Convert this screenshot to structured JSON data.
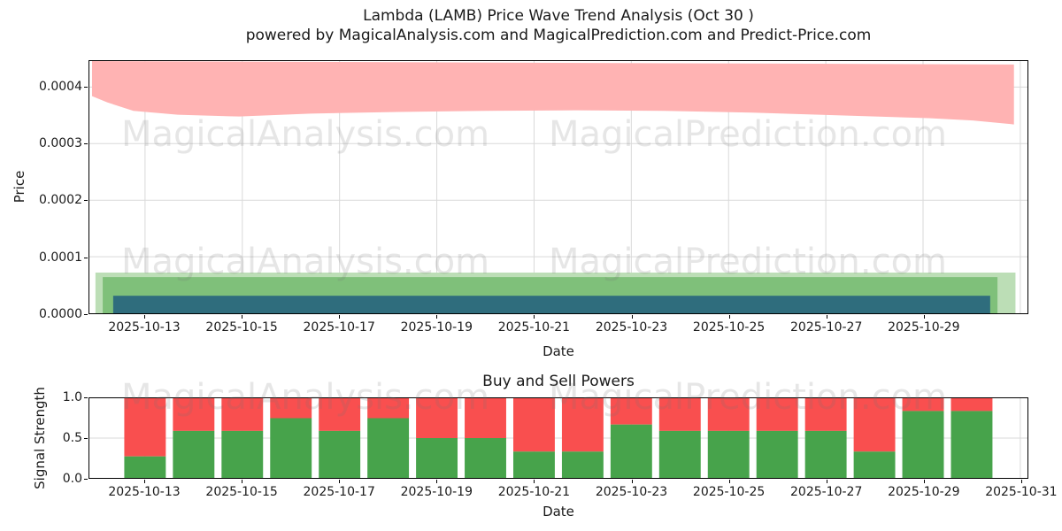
{
  "figure": {
    "title_line1": "Lambda (LAMB) Price Wave Trend Analysis (Oct 30 )",
    "title_line2": "powered by MagicalAnalysis.com and MagicalPrediction.com and Predict-Price.com"
  },
  "watermarks": {
    "text1": "MagicalAnalysis.com",
    "text2": "MagicalPrediction.com"
  },
  "colors": {
    "resistance_band": "#ffb3b3",
    "support_band_outer": "#bcdeb6",
    "support_band_inner": "#7fc07a",
    "trend_band": "#2f6d7d",
    "buy_bar": "#47a34b",
    "sell_bar": "#f94f4f",
    "grid": "#d9d9d9",
    "axis": "#000000",
    "text": "#1a1a1a"
  },
  "chart_data": [
    {
      "type": "area",
      "title": "Lambda (LAMB) Price Wave Trend Analysis (Oct 30 )",
      "xlabel": "Date",
      "ylabel": "Price",
      "ylim": [
        0.0,
        0.000446
      ],
      "grid": true,
      "day0": "2025-10-12",
      "xticks": [
        "2025-10-13",
        "2025-10-15",
        "2025-10-17",
        "2025-10-19",
        "2025-10-21",
        "2025-10-23",
        "2025-10-25",
        "2025-10-27",
        "2025-10-29"
      ],
      "ytick_labels": [
        "0.0000",
        "0.0001",
        "0.0002",
        "0.0003",
        "0.0004"
      ],
      "ytick_values": [
        0.0,
        0.0001,
        0.0002,
        0.0003,
        0.0004
      ],
      "bands": {
        "resistance_pink": {
          "color": "#ffb3b3",
          "upper": [
            [
              -0.09,
              0.000446
            ],
            [
              18.87,
              0.00044
            ]
          ],
          "lower": [
            [
              -0.09,
              0.000384
            ],
            [
              0.22,
              0.000373
            ],
            [
              0.76,
              0.000358
            ],
            [
              1.67,
              0.000351
            ],
            [
              2.94,
              0.000348
            ],
            [
              4.4,
              0.000353
            ],
            [
              6.21,
              0.000356
            ],
            [
              8.03,
              0.000358
            ],
            [
              9.85,
              0.000359
            ],
            [
              11.66,
              0.000358
            ],
            [
              13.48,
              0.000355
            ],
            [
              15.3,
              0.00035
            ],
            [
              17.11,
              0.000345
            ],
            [
              18.02,
              0.000341
            ],
            [
              18.87,
              0.000334
            ]
          ]
        },
        "support_outer_green": {
          "color": "#bcdeb6",
          "start_day": -0.02,
          "end_day": 18.9,
          "top": 7.2e-05,
          "bottom": 0.0
        },
        "support_inner_green": {
          "color": "#7fc07a",
          "start_day": 0.13,
          "end_day": 18.53,
          "top": 6.4e-05,
          "bottom": 0.0
        },
        "trend_teal": {
          "color": "#2f6d7d",
          "start_day": 0.345,
          "end_day": 18.38,
          "top": 3.1e-05,
          "bottom": 0.0
        }
      }
    },
    {
      "type": "bar-stacked",
      "title": "Buy and Sell Powers",
      "xlabel": "Date",
      "ylabel": "Signal Strength",
      "ylim": [
        0.0,
        1.0
      ],
      "grid": true,
      "ytick_labels": [
        "0.0",
        "0.5",
        "1.0"
      ],
      "ytick_values": [
        0.0,
        0.5,
        1.0
      ],
      "xticks": [
        "2025-10-13",
        "2025-10-15",
        "2025-10-17",
        "2025-10-19",
        "2025-10-21",
        "2025-10-23",
        "2025-10-25",
        "2025-10-27",
        "2025-10-29",
        "2025-10-31"
      ],
      "categories": [
        "2025-10-13",
        "2025-10-14",
        "2025-10-15",
        "2025-10-16",
        "2025-10-17",
        "2025-10-18",
        "2025-10-19",
        "2025-10-20",
        "2025-10-21",
        "2025-10-22",
        "2025-10-23",
        "2025-10-24",
        "2025-10-25",
        "2025-10-26",
        "2025-10-27",
        "2025-10-28",
        "2025-10-29",
        "2025-10-30"
      ],
      "series": [
        {
          "name": "Buy",
          "color": "#47a34b",
          "values": [
            0.27,
            0.59,
            0.59,
            0.75,
            0.59,
            0.75,
            0.5,
            0.5,
            0.33,
            0.33,
            0.67,
            0.59,
            0.59,
            0.59,
            0.59,
            0.33,
            0.84,
            0.84
          ]
        },
        {
          "name": "Sell",
          "color": "#f94f4f",
          "values": [
            0.73,
            0.41,
            0.41,
            0.25,
            0.41,
            0.25,
            0.5,
            0.5,
            0.67,
            0.67,
            0.33,
            0.41,
            0.41,
            0.41,
            0.41,
            0.67,
            0.16,
            0.16
          ]
        }
      ]
    }
  ]
}
